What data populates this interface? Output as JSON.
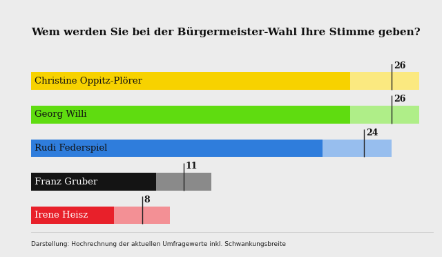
{
  "chart_data": {
    "type": "bar",
    "orientation": "horizontal",
    "title": "Wem werden Sie bei der Bürgermeister-Wahl Ihre Stimme geben?",
    "annotations": [
      "Darstellung: Hochrechnung der aktuellen Umfragewerte inkl. Schwankungsbreite"
    ],
    "categories": [
      "Christine Oppitz-Plörer",
      "Georg Willi",
      "Rudi Federspiel",
      "Franz Gruber",
      "Irene Heisz"
    ],
    "values": [
      26,
      26,
      24,
      11,
      8
    ],
    "ranges": [
      [
        23,
        28
      ],
      [
        23,
        28
      ],
      [
        21,
        26
      ],
      [
        9,
        13
      ],
      [
        6,
        10
      ]
    ],
    "colors": [
      "#f7d200",
      "#5fdc10",
      "#2f7ddc",
      "#141414",
      "#e8202a"
    ],
    "xlim": [
      0,
      29
    ],
    "xticks": [],
    "data_labels": true,
    "tick_labels": false,
    "grid": false
  }
}
